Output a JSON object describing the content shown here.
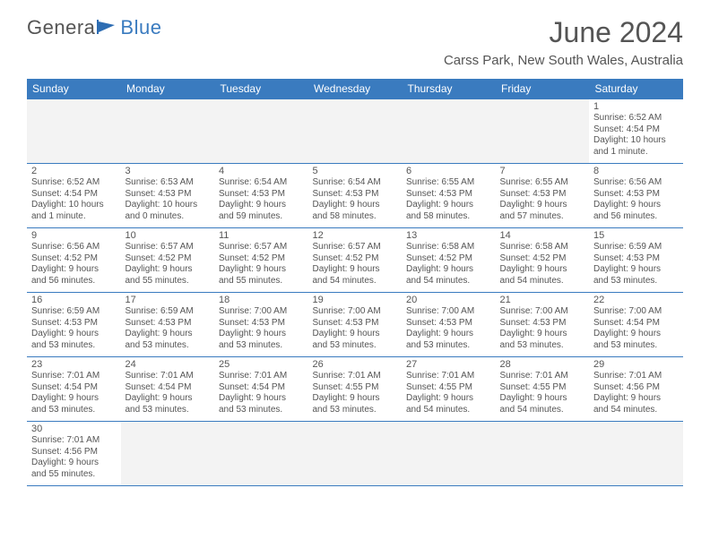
{
  "logo": {
    "text1": "Genera",
    "text2": "Blue"
  },
  "title": "June 2024",
  "location": "Carss Park, New South Wales, Australia",
  "colors": {
    "header_bg": "#3a7bbf",
    "header_text": "#ffffff",
    "text": "#555555",
    "border": "#3a7bbf",
    "empty_bg": "#f3f3f3"
  },
  "weekdays": [
    "Sunday",
    "Monday",
    "Tuesday",
    "Wednesday",
    "Thursday",
    "Friday",
    "Saturday"
  ],
  "weeks": [
    [
      null,
      null,
      null,
      null,
      null,
      null,
      {
        "n": "1",
        "sr": "Sunrise: 6:52 AM",
        "ss": "Sunset: 4:54 PM",
        "d1": "Daylight: 10 hours",
        "d2": "and 1 minute."
      }
    ],
    [
      {
        "n": "2",
        "sr": "Sunrise: 6:52 AM",
        "ss": "Sunset: 4:54 PM",
        "d1": "Daylight: 10 hours",
        "d2": "and 1 minute."
      },
      {
        "n": "3",
        "sr": "Sunrise: 6:53 AM",
        "ss": "Sunset: 4:53 PM",
        "d1": "Daylight: 10 hours",
        "d2": "and 0 minutes."
      },
      {
        "n": "4",
        "sr": "Sunrise: 6:54 AM",
        "ss": "Sunset: 4:53 PM",
        "d1": "Daylight: 9 hours",
        "d2": "and 59 minutes."
      },
      {
        "n": "5",
        "sr": "Sunrise: 6:54 AM",
        "ss": "Sunset: 4:53 PM",
        "d1": "Daylight: 9 hours",
        "d2": "and 58 minutes."
      },
      {
        "n": "6",
        "sr": "Sunrise: 6:55 AM",
        "ss": "Sunset: 4:53 PM",
        "d1": "Daylight: 9 hours",
        "d2": "and 58 minutes."
      },
      {
        "n": "7",
        "sr": "Sunrise: 6:55 AM",
        "ss": "Sunset: 4:53 PM",
        "d1": "Daylight: 9 hours",
        "d2": "and 57 minutes."
      },
      {
        "n": "8",
        "sr": "Sunrise: 6:56 AM",
        "ss": "Sunset: 4:53 PM",
        "d1": "Daylight: 9 hours",
        "d2": "and 56 minutes."
      }
    ],
    [
      {
        "n": "9",
        "sr": "Sunrise: 6:56 AM",
        "ss": "Sunset: 4:52 PM",
        "d1": "Daylight: 9 hours",
        "d2": "and 56 minutes."
      },
      {
        "n": "10",
        "sr": "Sunrise: 6:57 AM",
        "ss": "Sunset: 4:52 PM",
        "d1": "Daylight: 9 hours",
        "d2": "and 55 minutes."
      },
      {
        "n": "11",
        "sr": "Sunrise: 6:57 AM",
        "ss": "Sunset: 4:52 PM",
        "d1": "Daylight: 9 hours",
        "d2": "and 55 minutes."
      },
      {
        "n": "12",
        "sr": "Sunrise: 6:57 AM",
        "ss": "Sunset: 4:52 PM",
        "d1": "Daylight: 9 hours",
        "d2": "and 54 minutes."
      },
      {
        "n": "13",
        "sr": "Sunrise: 6:58 AM",
        "ss": "Sunset: 4:52 PM",
        "d1": "Daylight: 9 hours",
        "d2": "and 54 minutes."
      },
      {
        "n": "14",
        "sr": "Sunrise: 6:58 AM",
        "ss": "Sunset: 4:52 PM",
        "d1": "Daylight: 9 hours",
        "d2": "and 54 minutes."
      },
      {
        "n": "15",
        "sr": "Sunrise: 6:59 AM",
        "ss": "Sunset: 4:53 PM",
        "d1": "Daylight: 9 hours",
        "d2": "and 53 minutes."
      }
    ],
    [
      {
        "n": "16",
        "sr": "Sunrise: 6:59 AM",
        "ss": "Sunset: 4:53 PM",
        "d1": "Daylight: 9 hours",
        "d2": "and 53 minutes."
      },
      {
        "n": "17",
        "sr": "Sunrise: 6:59 AM",
        "ss": "Sunset: 4:53 PM",
        "d1": "Daylight: 9 hours",
        "d2": "and 53 minutes."
      },
      {
        "n": "18",
        "sr": "Sunrise: 7:00 AM",
        "ss": "Sunset: 4:53 PM",
        "d1": "Daylight: 9 hours",
        "d2": "and 53 minutes."
      },
      {
        "n": "19",
        "sr": "Sunrise: 7:00 AM",
        "ss": "Sunset: 4:53 PM",
        "d1": "Daylight: 9 hours",
        "d2": "and 53 minutes."
      },
      {
        "n": "20",
        "sr": "Sunrise: 7:00 AM",
        "ss": "Sunset: 4:53 PM",
        "d1": "Daylight: 9 hours",
        "d2": "and 53 minutes."
      },
      {
        "n": "21",
        "sr": "Sunrise: 7:00 AM",
        "ss": "Sunset: 4:53 PM",
        "d1": "Daylight: 9 hours",
        "d2": "and 53 minutes."
      },
      {
        "n": "22",
        "sr": "Sunrise: 7:00 AM",
        "ss": "Sunset: 4:54 PM",
        "d1": "Daylight: 9 hours",
        "d2": "and 53 minutes."
      }
    ],
    [
      {
        "n": "23",
        "sr": "Sunrise: 7:01 AM",
        "ss": "Sunset: 4:54 PM",
        "d1": "Daylight: 9 hours",
        "d2": "and 53 minutes."
      },
      {
        "n": "24",
        "sr": "Sunrise: 7:01 AM",
        "ss": "Sunset: 4:54 PM",
        "d1": "Daylight: 9 hours",
        "d2": "and 53 minutes."
      },
      {
        "n": "25",
        "sr": "Sunrise: 7:01 AM",
        "ss": "Sunset: 4:54 PM",
        "d1": "Daylight: 9 hours",
        "d2": "and 53 minutes."
      },
      {
        "n": "26",
        "sr": "Sunrise: 7:01 AM",
        "ss": "Sunset: 4:55 PM",
        "d1": "Daylight: 9 hours",
        "d2": "and 53 minutes."
      },
      {
        "n": "27",
        "sr": "Sunrise: 7:01 AM",
        "ss": "Sunset: 4:55 PM",
        "d1": "Daylight: 9 hours",
        "d2": "and 54 minutes."
      },
      {
        "n": "28",
        "sr": "Sunrise: 7:01 AM",
        "ss": "Sunset: 4:55 PM",
        "d1": "Daylight: 9 hours",
        "d2": "and 54 minutes."
      },
      {
        "n": "29",
        "sr": "Sunrise: 7:01 AM",
        "ss": "Sunset: 4:56 PM",
        "d1": "Daylight: 9 hours",
        "d2": "and 54 minutes."
      }
    ],
    [
      {
        "n": "30",
        "sr": "Sunrise: 7:01 AM",
        "ss": "Sunset: 4:56 PM",
        "d1": "Daylight: 9 hours",
        "d2": "and 55 minutes."
      },
      null,
      null,
      null,
      null,
      null,
      null
    ]
  ]
}
